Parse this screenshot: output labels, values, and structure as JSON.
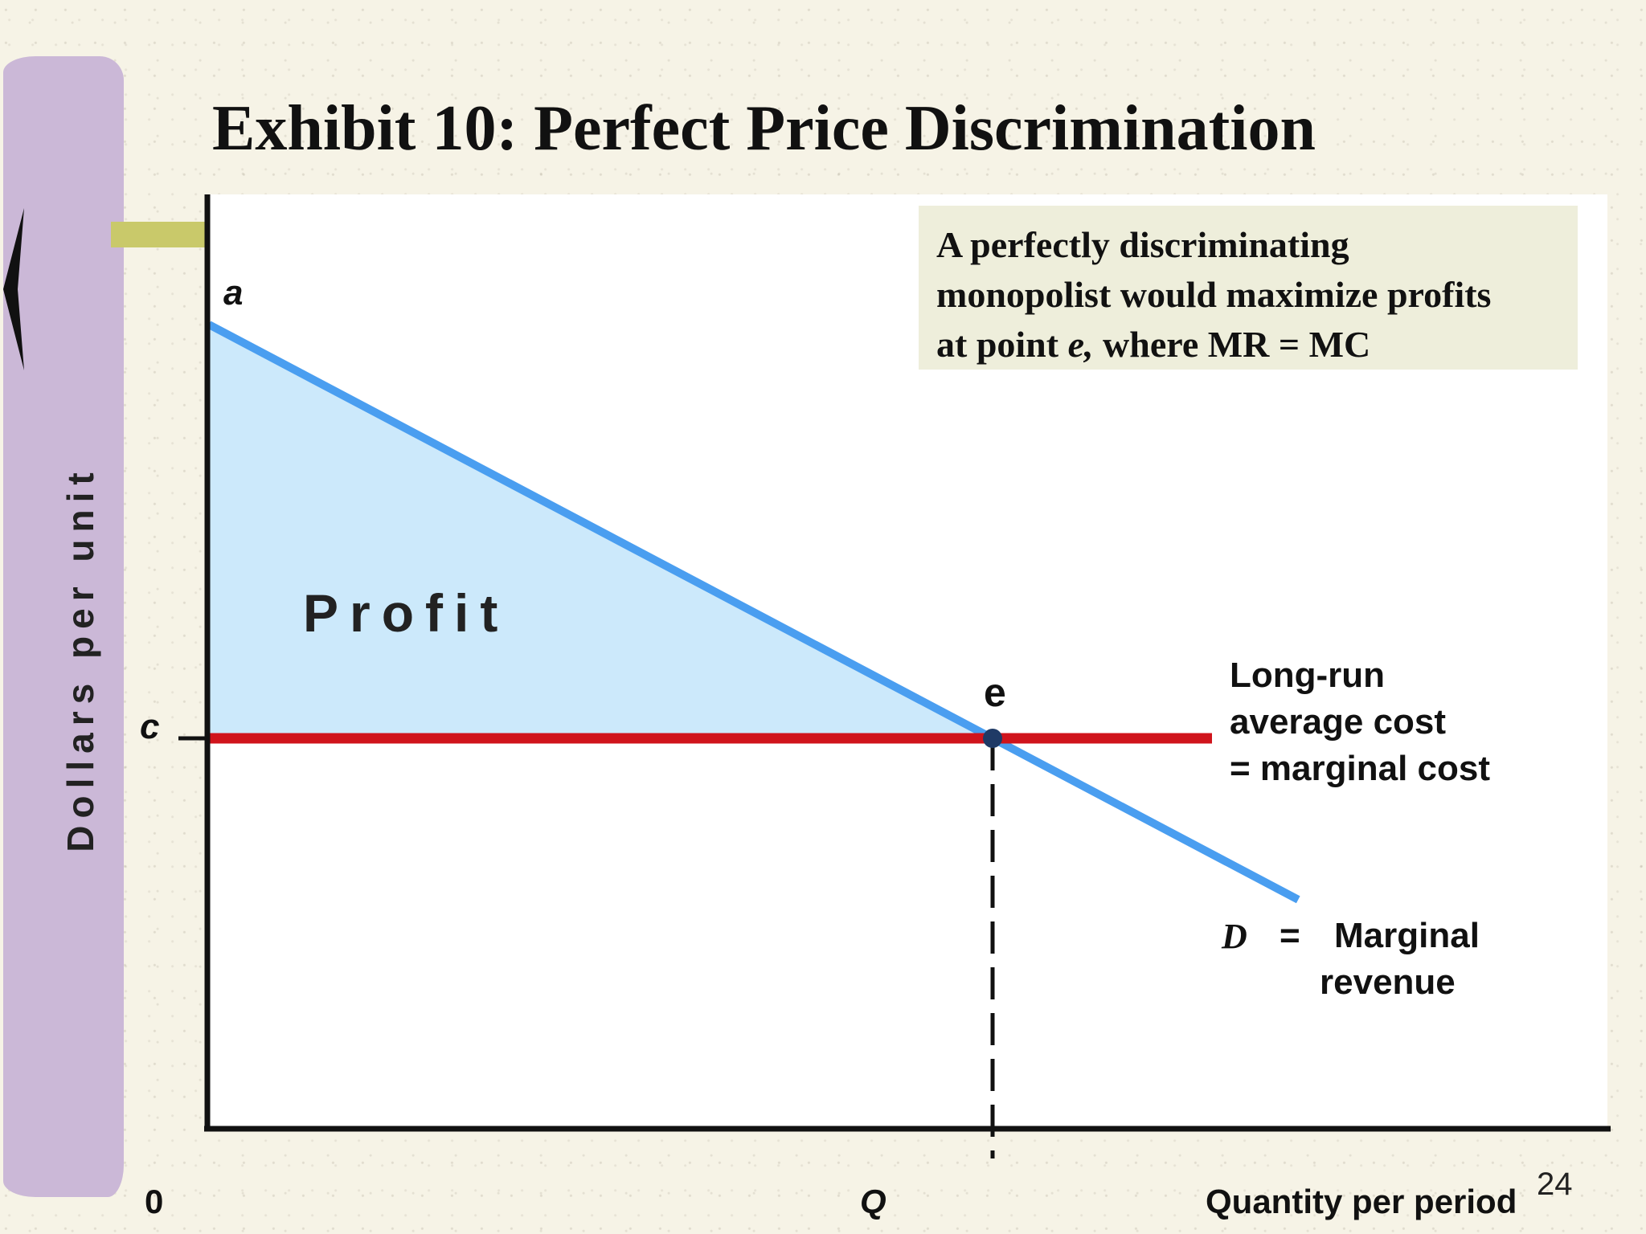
{
  "slide": {
    "title": "Exhibit 10: Perfect Price Discrimination",
    "number": "24",
    "accent_bar_color": "#cbb8d7",
    "tab_color": "#c9c96a"
  },
  "note": {
    "line1": "A perfectly discriminating",
    "line2": "monopolist would maximize profits",
    "line3_pre": "at point ",
    "line3_em": "e,",
    "line3_post": " where MR = MC"
  },
  "chart_data": {
    "type": "line",
    "title": "Exhibit 10: Perfect Price Discrimination",
    "xlabel": "Quantity per period",
    "ylabel": "Dollars per unit",
    "x_ticks": [
      "0",
      "Q"
    ],
    "y_ticks": [
      "a",
      "c"
    ],
    "series": [
      {
        "name": "D = Marginal revenue",
        "label_symbol": "D",
        "label_eq": "=",
        "label_line1": "Marginal",
        "label_line2": "revenue",
        "color": "#4a9ef0",
        "points": [
          [
            0,
            1.0
          ],
          [
            1,
            0.0
          ],
          [
            1.39,
            -0.39
          ]
        ]
      },
      {
        "name": "Long-run average cost = marginal cost",
        "label_line1": "Long-run",
        "label_line2": "average cost",
        "label_line3": "= marginal cost",
        "color": "#d0141c",
        "points": [
          [
            0,
            0
          ],
          [
            1.28,
            0
          ]
        ]
      }
    ],
    "shaded_region": {
      "label": "Profit",
      "color": "#cce9fb",
      "vertices": [
        [
          0,
          1.0
        ],
        [
          1,
          0
        ],
        [
          0,
          0
        ]
      ]
    },
    "points_of_interest": [
      {
        "label": "e",
        "x": 1,
        "y": 0
      }
    ],
    "reference_lines": [
      {
        "orientation": "vertical",
        "at": "Q",
        "style": "dashed"
      }
    ],
    "grid": false,
    "legend": "none"
  }
}
